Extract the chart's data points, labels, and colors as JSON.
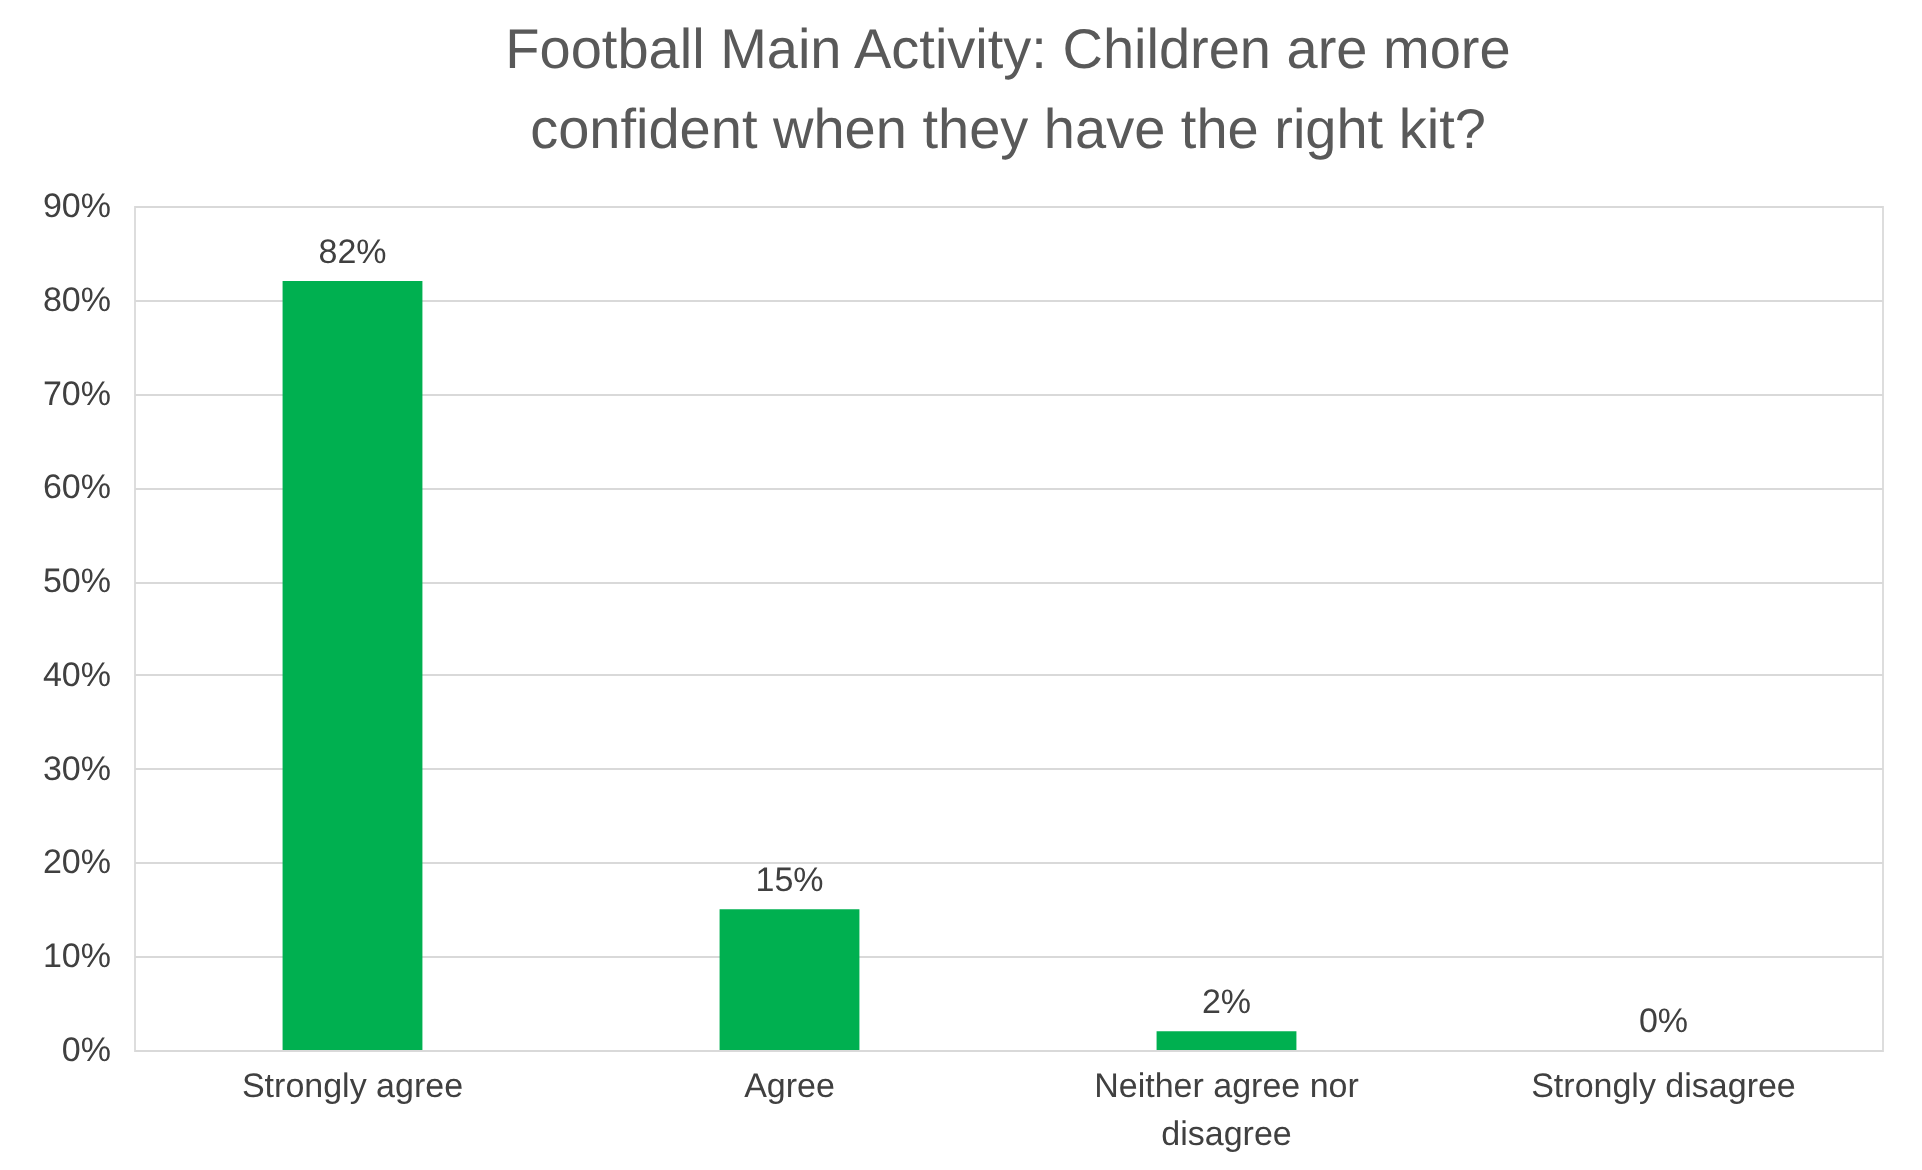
{
  "chart_data": {
    "type": "bar",
    "title": "Football Main Activity: Children are more confident when they have the right kit?",
    "categories": [
      "Strongly agree",
      "Agree",
      "Neither agree nor disagree",
      "Strongly disagree"
    ],
    "values": [
      82,
      15,
      2,
      0
    ],
    "color": "#00b050",
    "value_labels": [
      "82%",
      "15%",
      "2%",
      "0%"
    ],
    "ylim": [
      0,
      90
    ],
    "yticks": [
      {
        "value": 0,
        "label": "0%"
      },
      {
        "value": 10,
        "label": "10%"
      },
      {
        "value": 20,
        "label": "20%"
      },
      {
        "value": 30,
        "label": "30%"
      },
      {
        "value": 40,
        "label": "40%"
      },
      {
        "value": 50,
        "label": "50%"
      },
      {
        "value": 60,
        "label": "60%"
      },
      {
        "value": 70,
        "label": "70%"
      },
      {
        "value": 80,
        "label": "80%"
      },
      {
        "value": 90,
        "label": "90%"
      }
    ],
    "grid": "y"
  }
}
